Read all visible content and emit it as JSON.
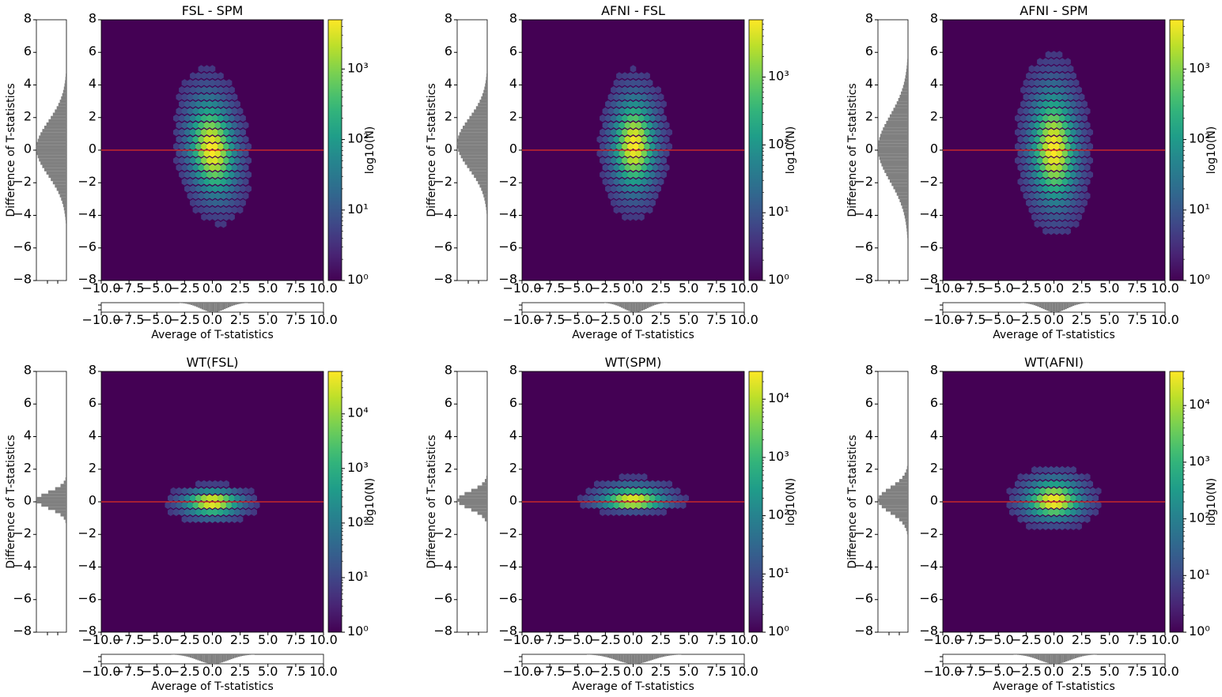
{
  "chart_data": [
    {
      "type": "heatmap",
      "title": "FSL - SPM",
      "xlabel": "Average of T-statistics",
      "ylabel": "Difference of T-statistics",
      "colorbar_label": "log10(N)",
      "xlim": [
        -10,
        10
      ],
      "ylim": [
        -8,
        8
      ],
      "xticks": [
        "−10.0",
        "−7.5",
        "−5.0",
        "−2.5",
        "0.0",
        "2.5",
        "5.0",
        "7.5",
        "10.0"
      ],
      "yticks": [
        "−8",
        "−6",
        "−4",
        "−2",
        "0",
        "2",
        "4",
        "6",
        "8"
      ],
      "colorbar_scale": "log",
      "colorbar_range": [
        1,
        5000
      ],
      "colorbar_ticks": [
        "10⁰",
        "10¹",
        "10²",
        "10³"
      ],
      "density": {
        "x_center": 0.0,
        "y_center": 0.0,
        "x_extent": [
          -3.3,
          3.5
        ],
        "y_extent": [
          -4.5,
          5.0
        ],
        "tilt": -0.25
      },
      "reference_line_y": 0
    },
    {
      "type": "heatmap",
      "title": "AFNI - FSL",
      "xlabel": "Average of T-statistics",
      "ylabel": "Difference of T-statistics",
      "colorbar_label": "log10(N)",
      "xlim": [
        -10,
        10
      ],
      "ylim": [
        -8,
        8
      ],
      "xticks": [
        "−10.0",
        "−7.5",
        "−5.0",
        "−2.5",
        "0.0",
        "2.5",
        "5.0",
        "7.5",
        "10.0"
      ],
      "yticks": [
        "−8",
        "−6",
        "−4",
        "−2",
        "0",
        "2",
        "4",
        "6",
        "8"
      ],
      "colorbar_scale": "log",
      "colorbar_range": [
        1,
        7000
      ],
      "colorbar_ticks": [
        "10⁰",
        "10¹",
        "10²",
        "10³"
      ],
      "density": {
        "x_center": 0.1,
        "y_center": 0.3,
        "x_extent": [
          -3.1,
          3.3
        ],
        "y_extent": [
          -4.3,
          5.0
        ],
        "tilt": 0
      },
      "reference_line_y": 0
    },
    {
      "type": "heatmap",
      "title": "AFNI - SPM",
      "xlabel": "Average of T-statistics",
      "ylabel": "Difference of T-statistics",
      "colorbar_label": "log10(N)",
      "xlim": [
        -10,
        10
      ],
      "ylim": [
        -8,
        8
      ],
      "xticks": [
        "−10.0",
        "−7.5",
        "−5.0",
        "−2.5",
        "0.0",
        "2.5",
        "5.0",
        "7.5",
        "10.0"
      ],
      "yticks": [
        "−8",
        "−6",
        "−4",
        "−2",
        "0",
        "2",
        "4",
        "6",
        "8"
      ],
      "colorbar_scale": "log",
      "colorbar_range": [
        1,
        5000
      ],
      "colorbar_ticks": [
        "10⁰",
        "10¹",
        "10²",
        "10³"
      ],
      "density": {
        "x_center": 0.0,
        "y_center": 0.0,
        "x_extent": [
          -3.0,
          3.4
        ],
        "y_extent": [
          -5.4,
          6.0
        ],
        "tilt": -0.1
      },
      "reference_line_y": 0
    },
    {
      "type": "heatmap",
      "title": "WT(FSL)",
      "xlabel": "Average of T-statistics",
      "ylabel": "Difference of T-statistics",
      "colorbar_label": "log10(N)",
      "xlim": [
        -10,
        10
      ],
      "ylim": [
        -8,
        8
      ],
      "xticks": [
        "−10.0",
        "−7.5",
        "−5.0",
        "−2.5",
        "0.0",
        "2.5",
        "5.0",
        "7.5",
        "10.0"
      ],
      "yticks": [
        "−8",
        "−6",
        "−4",
        "−2",
        "0",
        "2",
        "4",
        "6",
        "8"
      ],
      "colorbar_scale": "log",
      "colorbar_range": [
        1,
        60000
      ],
      "colorbar_ticks": [
        "10⁰",
        "10¹",
        "10²",
        "10³",
        "10⁴"
      ],
      "density": {
        "x_center": 0.0,
        "y_center": 0.0,
        "x_extent": [
          -4.2,
          4.0
        ],
        "y_extent": [
          -1.5,
          1.2
        ],
        "tilt": 0
      },
      "reference_line_y": 0
    },
    {
      "type": "heatmap",
      "title": "WT(SPM)",
      "xlabel": "Average of T-statistics",
      "ylabel": "Difference of T-statistics",
      "colorbar_label": "log10(N)",
      "xlim": [
        -10,
        10
      ],
      "ylim": [
        -8,
        8
      ],
      "xticks": [
        "−10.0",
        "−7.5",
        "−5.0",
        "−2.5",
        "0.0",
        "2.5",
        "5.0",
        "7.5",
        "10.0"
      ],
      "yticks": [
        "−8",
        "−6",
        "−4",
        "−2",
        "0",
        "2",
        "4",
        "6",
        "8"
      ],
      "colorbar_scale": "log",
      "colorbar_range": [
        1,
        30000
      ],
      "colorbar_ticks": [
        "10⁰",
        "10¹",
        "10²",
        "10³",
        "10⁴"
      ],
      "density": {
        "x_center": 0.0,
        "y_center": 0.0,
        "x_extent": [
          -4.5,
          4.8
        ],
        "y_extent": [
          -0.8,
          1.6
        ],
        "tilt": 0
      },
      "reference_line_y": 0
    },
    {
      "type": "heatmap",
      "title": "WT(AFNI)",
      "xlabel": "Average of T-statistics",
      "ylabel": "Difference of T-statistics",
      "colorbar_label": "log10(N)",
      "xlim": [
        -10,
        10
      ],
      "ylim": [
        -8,
        8
      ],
      "xticks": [
        "−10.0",
        "−7.5",
        "−5.0",
        "−2.5",
        "0.0",
        "2.5",
        "5.0",
        "7.5",
        "10.0"
      ],
      "yticks": [
        "−8",
        "−6",
        "−4",
        "−2",
        "0",
        "2",
        "4",
        "6",
        "8"
      ],
      "colorbar_scale": "log",
      "colorbar_range": [
        1,
        40000
      ],
      "colorbar_ticks": [
        "10⁰",
        "10¹",
        "10²",
        "10³",
        "10⁴"
      ],
      "density": {
        "x_center": 0.0,
        "y_center": 0.0,
        "x_extent": [
          -3.8,
          4.2
        ],
        "y_extent": [
          -1.8,
          2.3
        ],
        "tilt": 0
      },
      "reference_line_y": 0
    }
  ],
  "colors": {
    "background_viridis": "#440154",
    "reference_line": "#e03020",
    "marginal_histogram": "#808080"
  }
}
